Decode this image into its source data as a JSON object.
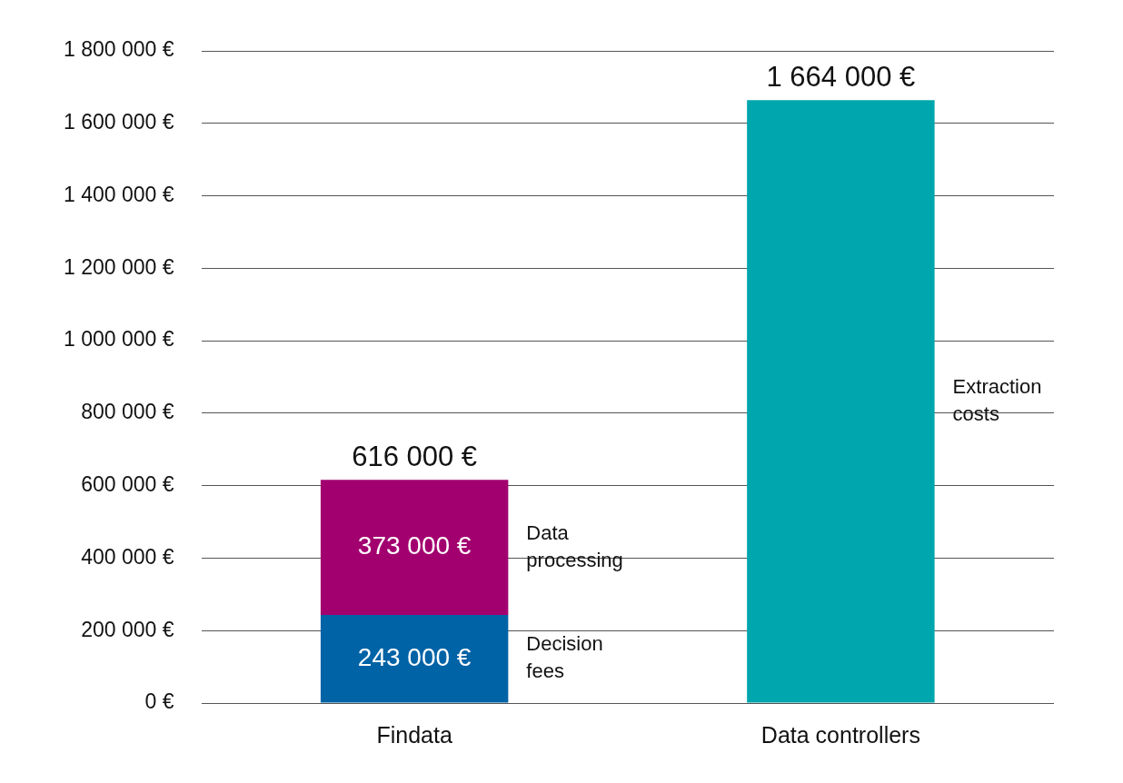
{
  "chart_data": {
    "type": "bar",
    "categories": [
      "Findata",
      "Data controllers"
    ],
    "series": [
      {
        "name": "Decision fees",
        "color": "#0063a6",
        "values": [
          243000,
          null
        ],
        "value_labels": [
          "243 000 €",
          null
        ]
      },
      {
        "name": "Data processing",
        "color": "#a2006f",
        "values": [
          373000,
          null
        ],
        "value_labels": [
          "373 000 €",
          null
        ]
      },
      {
        "name": "Extraction costs",
        "color": "#00a6ad",
        "values": [
          null,
          1664000
        ],
        "value_labels": [
          null,
          null
        ]
      }
    ],
    "totals": [
      616000,
      1664000
    ],
    "total_labels": [
      "616 000 €",
      "1 664 000 €"
    ],
    "ylim": [
      0,
      1800000
    ],
    "yticks": [
      {
        "value": 0,
        "label": "0 €"
      },
      {
        "value": 200000,
        "label": "200 000 €"
      },
      {
        "value": 400000,
        "label": "400 000 €"
      },
      {
        "value": 600000,
        "label": "600 000 €"
      },
      {
        "value": 800000,
        "label": "800 000 €"
      },
      {
        "value": 1000000,
        "label": "1 000 000 €"
      },
      {
        "value": 1200000,
        "label": "1 200 000 €"
      },
      {
        "value": 1400000,
        "label": "1 400 000 €"
      },
      {
        "value": 1600000,
        "label": "1 600 000 €"
      },
      {
        "value": 1800000,
        "label": "1 800 000 €"
      }
    ],
    "stacked": true,
    "grid": true,
    "data_labels": true
  }
}
